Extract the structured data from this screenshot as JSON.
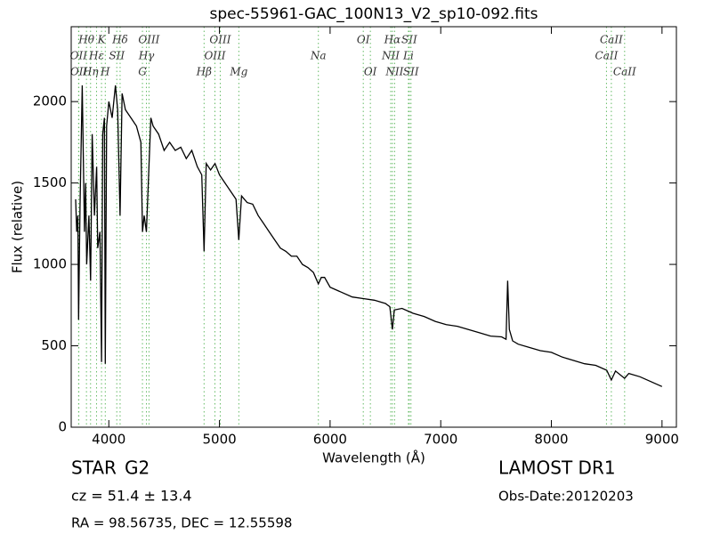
{
  "chart_data": {
    "type": "line",
    "title": "spec-55961-GAC_100N13_V2_sp10-092.fits",
    "x_label": "Wavelength (Å)",
    "y_label": "Flux (relative)",
    "xlim": [
      3660,
      9130
    ],
    "ylim": [
      0,
      2460
    ],
    "xticks": [
      4000,
      5000,
      6000,
      7000,
      8000,
      9000
    ],
    "yticks": [
      0,
      500,
      1000,
      1500,
      2000
    ],
    "color": "#000000",
    "line_color": "#66bb66",
    "x": [
      3700,
      3710,
      3720,
      3727,
      3740,
      3760,
      3780,
      3790,
      3800,
      3820,
      3835,
      3850,
      3870,
      3890,
      3900,
      3920,
      3934,
      3945,
      3960,
      3968,
      3980,
      4000,
      4030,
      4060,
      4080,
      4102,
      4120,
      4150,
      4200,
      4250,
      4290,
      4304,
      4320,
      4340,
      4360,
      4380,
      4400,
      4450,
      4500,
      4550,
      4600,
      4650,
      4700,
      4750,
      4800,
      4840,
      4861,
      4880,
      4920,
      4960,
      5000,
      5050,
      5100,
      5150,
      5175,
      5200,
      5250,
      5300,
      5350,
      5400,
      5450,
      5500,
      5550,
      5600,
      5650,
      5700,
      5750,
      5800,
      5850,
      5894,
      5920,
      5950,
      6000,
      6100,
      6200,
      6300,
      6400,
      6500,
      6540,
      6563,
      6580,
      6650,
      6750,
      6850,
      6950,
      7050,
      7150,
      7250,
      7350,
      7450,
      7550,
      7590,
      7605,
      7620,
      7650,
      7700,
      7800,
      7900,
      8000,
      8100,
      8200,
      8300,
      8400,
      8500,
      8542,
      8580,
      8662,
      8700,
      8800,
      8900,
      9000
    ],
    "values": [
      1400,
      1200,
      1300,
      660,
      1350,
      2100,
      1200,
      1500,
      1000,
      1300,
      900,
      1800,
      1300,
      1600,
      1100,
      1200,
      400,
      1800,
      1900,
      390,
      1850,
      2000,
      1900,
      2100,
      1950,
      1300,
      2050,
      1950,
      1900,
      1850,
      1750,
      1200,
      1300,
      1200,
      1550,
      1900,
      1850,
      1800,
      1700,
      1750,
      1700,
      1720,
      1650,
      1700,
      1600,
      1550,
      1080,
      1620,
      1580,
      1620,
      1550,
      1500,
      1450,
      1400,
      1150,
      1420,
      1380,
      1370,
      1300,
      1250,
      1200,
      1150,
      1100,
      1080,
      1050,
      1050,
      1000,
      980,
      950,
      880,
      920,
      920,
      860,
      830,
      800,
      790,
      780,
      760,
      740,
      600,
      720,
      730,
      700,
      680,
      650,
      630,
      620,
      600,
      580,
      560,
      555,
      540,
      900,
      600,
      530,
      510,
      490,
      470,
      460,
      430,
      410,
      390,
      380,
      350,
      290,
      345,
      300,
      330,
      310,
      280,
      250
    ],
    "lines": [
      {
        "label": "OII",
        "wavelength": 3727
      },
      {
        "label": "OII",
        "wavelength": 3729
      },
      {
        "label": "Hθ",
        "wavelength": 3798
      },
      {
        "label": "Hη",
        "wavelength": 3835
      },
      {
        "label": "Hε",
        "wavelength": 3889
      },
      {
        "label": "K",
        "wavelength": 3934
      },
      {
        "label": "SII",
        "wavelength": 4072
      },
      {
        "label": "H",
        "wavelength": 3968
      },
      {
        "label": "Hδ",
        "wavelength": 4102
      },
      {
        "label": "G",
        "wavelength": 4304
      },
      {
        "label": "Hγ",
        "wavelength": 4340
      },
      {
        "label": "OIII",
        "wavelength": 4363
      },
      {
        "label": "Hβ",
        "wavelength": 4861
      },
      {
        "label": "OIII",
        "wavelength": 4959
      },
      {
        "label": "OIII",
        "wavelength": 5007
      },
      {
        "label": "Mg",
        "wavelength": 5175
      },
      {
        "label": "Na",
        "wavelength": 5894
      },
      {
        "label": "OI",
        "wavelength": 6300
      },
      {
        "label": "OI",
        "wavelength": 6364
      },
      {
        "label": "NII",
        "wavelength": 6548
      },
      {
        "label": "Hα",
        "wavelength": 6563
      },
      {
        "label": "NII",
        "wavelength": 6583
      },
      {
        "label": "Li",
        "wavelength": 6708
      },
      {
        "label": "SII",
        "wavelength": 6716
      },
      {
        "label": "SII",
        "wavelength": 6731
      },
      {
        "label": "CaII",
        "wavelength": 8498
      },
      {
        "label": "CaII",
        "wavelength": 8542
      },
      {
        "label": "CaII",
        "wavelength": 8662
      }
    ],
    "object_class": "STAR",
    "subclass": "G2",
    "redshift": "cz = 51.4  ± 13.4",
    "coords": "RA = 98.56735, DEC = 12.55598",
    "survey": "LAMOST DR1",
    "obs_date": "Obs-Date:20120203"
  }
}
